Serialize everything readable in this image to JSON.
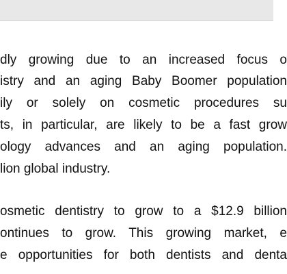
{
  "window": {
    "top_bar_color": "#e8e8e8"
  },
  "document": {
    "paragraph1": [
      "dly growing due to an increased focus o",
      "istry and an aging Baby Boomer population",
      "ily or solely on cosmetic procedures su",
      "ts, in particular, are likely to be a fast grow",
      "ology advances and an aging population.",
      "lion global industry."
    ],
    "paragraph2": [
      "osmetic dentistry to grow to a $12.9 billion",
      "ontinues to grow.  This growing market, e",
      "e opportunities for both dentists and denta"
    ]
  }
}
